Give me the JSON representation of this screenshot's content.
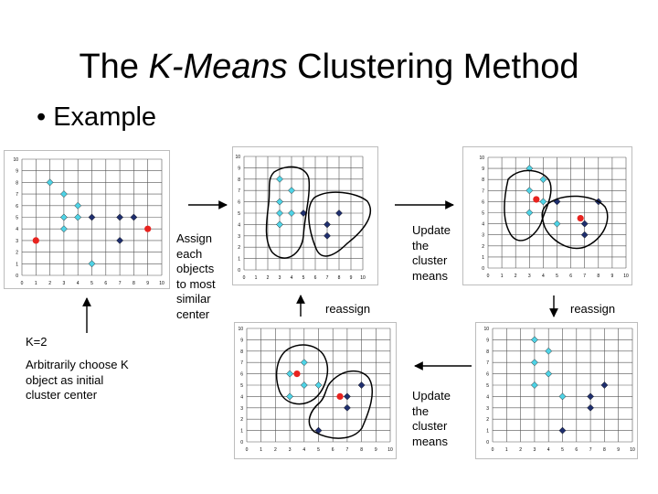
{
  "title": {
    "normal_1": "The ",
    "italic": "K-Means",
    "normal_2": " Clustering Method"
  },
  "bullet": "Example",
  "labels": {
    "assign": [
      "Assign",
      "each",
      "objects",
      "to most",
      "similar",
      "center"
    ],
    "update_top": [
      "Update",
      "the",
      "cluster",
      "means"
    ],
    "reassign_mid": "reassign",
    "reassign_right": "reassign",
    "update_bottom": [
      "Update",
      "the",
      "cluster",
      "means"
    ],
    "k": "K=2",
    "arbitrary": [
      "Arbitrarily choose K",
      "object as initial",
      "cluster center"
    ]
  },
  "axis": {
    "ticks": [
      "0",
      "1",
      "2",
      "3",
      "4",
      "5",
      "6",
      "7",
      "8",
      "9",
      "10"
    ]
  },
  "colors": {
    "cyan": "#4fd3e6",
    "navy": "#1f2f6e",
    "red": "#e8231f"
  },
  "chart_data": [
    {
      "type": "scatter",
      "id": "initial",
      "xlim": [
        0,
        10
      ],
      "ylim": [
        0,
        10
      ],
      "series": [
        {
          "color": "cyan",
          "marker": "diamond",
          "x": [
            2,
            3,
            4,
            3,
            4,
            3,
            5
          ],
          "y": [
            8,
            7,
            6,
            5,
            5,
            4,
            1
          ]
        },
        {
          "color": "navy",
          "marker": "diamond",
          "x": [
            5,
            7,
            8,
            7
          ],
          "y": [
            5,
            5,
            5,
            3
          ]
        },
        {
          "color": "red",
          "marker": "circle",
          "x": [
            1,
            9
          ],
          "y": [
            3,
            4
          ]
        }
      ]
    },
    {
      "type": "scatter",
      "id": "assigned",
      "xlim": [
        0,
        10
      ],
      "ylim": [
        0,
        10
      ],
      "series": [
        {
          "color": "cyan",
          "marker": "diamond",
          "x": [
            3,
            3,
            4,
            3,
            4,
            3
          ],
          "y": [
            8,
            6,
            7,
            5,
            5,
            4
          ]
        },
        {
          "color": "navy",
          "marker": "diamond",
          "x": [
            5,
            7,
            7,
            8
          ],
          "y": [
            5,
            4,
            3,
            5
          ]
        }
      ]
    },
    {
      "type": "scatter",
      "id": "updated",
      "xlim": [
        0,
        10
      ],
      "ylim": [
        0,
        10
      ],
      "series": [
        {
          "color": "cyan",
          "marker": "diamond",
          "x": [
            3,
            4,
            3,
            4,
            3,
            5
          ],
          "y": [
            9,
            8,
            7,
            6,
            5,
            4
          ]
        },
        {
          "color": "navy",
          "marker": "diamond",
          "x": [
            5,
            7,
            8,
            7
          ],
          "y": [
            6,
            4,
            6,
            3
          ]
        },
        {
          "color": "red",
          "marker": "circle",
          "x": [
            3.5,
            6.7
          ],
          "y": [
            6.2,
            4.5
          ]
        }
      ]
    },
    {
      "type": "scatter",
      "id": "reassigned",
      "xlim": [
        0,
        10
      ],
      "ylim": [
        0,
        10
      ],
      "series": [
        {
          "color": "cyan",
          "marker": "diamond",
          "x": [
            4,
            3,
            4,
            5,
            3
          ],
          "y": [
            7,
            6,
            5,
            5,
            4
          ]
        },
        {
          "color": "navy",
          "marker": "diamond",
          "x": [
            5,
            7,
            8,
            7
          ],
          "y": [
            1,
            4,
            5,
            3
          ]
        },
        {
          "color": "red",
          "marker": "circle",
          "x": [
            3.5,
            6.5
          ],
          "y": [
            6,
            4
          ]
        }
      ]
    },
    {
      "type": "scatter",
      "id": "final",
      "xlim": [
        0,
        10
      ],
      "ylim": [
        0,
        10
      ],
      "series": [
        {
          "color": "cyan",
          "marker": "diamond",
          "x": [
            3,
            4,
            3,
            4,
            3,
            5
          ],
          "y": [
            9,
            8,
            7,
            6,
            5,
            4
          ]
        },
        {
          "color": "navy",
          "marker": "diamond",
          "x": [
            5,
            7,
            7,
            8
          ],
          "y": [
            1,
            4,
            3,
            5
          ]
        }
      ]
    }
  ]
}
